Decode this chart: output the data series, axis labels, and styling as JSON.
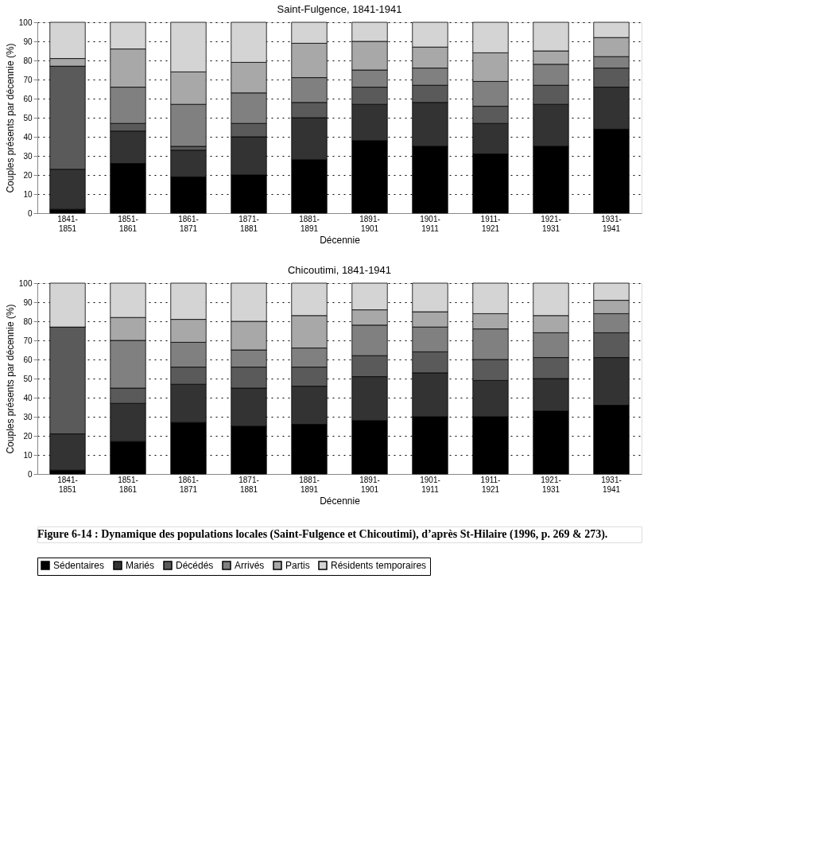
{
  "chart_data": [
    {
      "type": "bar",
      "stacked": true,
      "title": "Saint-Fulgence, 1841-1941",
      "xlabel": "Décennie",
      "ylabel": "Couples présents par décennie (%)",
      "categories": [
        "1841-1851",
        "1851-1861",
        "1861-1871",
        "1871-1881",
        "1881-1891",
        "1891-1901",
        "1901-1911",
        "1911-1921",
        "1921-1931",
        "1931-1941"
      ],
      "series": [
        {
          "name": "Sédentaires",
          "color": "#000000",
          "values": [
            2,
            26,
            19,
            20,
            28,
            38,
            35,
            31,
            35,
            44
          ]
        },
        {
          "name": "Mariés",
          "color": "#333333",
          "values": [
            21,
            17,
            14,
            20,
            22,
            19,
            23,
            16,
            22,
            22
          ]
        },
        {
          "name": "Décédés",
          "color": "#5a5a5a",
          "values": [
            54,
            4,
            2,
            7,
            8,
            9,
            9,
            9,
            10,
            10
          ]
        },
        {
          "name": "Arrivés",
          "color": "#808080",
          "values": [
            0,
            19,
            22,
            16,
            13,
            9,
            9,
            13,
            11,
            6
          ]
        },
        {
          "name": "Partis",
          "color": "#a8a8a8",
          "values": [
            4,
            20,
            17,
            16,
            18,
            15,
            11,
            15,
            7,
            10
          ]
        },
        {
          "name": "Résidents temporaires",
          "color": "#d4d4d4",
          "values": [
            19,
            14,
            26,
            21,
            11,
            10,
            13,
            16,
            15,
            8
          ]
        }
      ],
      "ylim": [
        0,
        100
      ],
      "yticks": [
        0,
        10,
        20,
        30,
        40,
        50,
        60,
        70,
        80,
        90,
        100
      ],
      "grid": "y",
      "legend": "bottom"
    },
    {
      "type": "bar",
      "stacked": true,
      "title": "Chicoutimi, 1841-1941",
      "xlabel": "Décennie",
      "ylabel": "Couples présents par décennie (%)",
      "categories": [
        "1841-1851",
        "1851-1861",
        "1861-1871",
        "1871-1881",
        "1881-1891",
        "1891-1901",
        "1901-1911",
        "1911-1921",
        "1921-1931",
        "1931-1941"
      ],
      "series": [
        {
          "name": "Sédentaires",
          "color": "#000000",
          "values": [
            2,
            17,
            27,
            25,
            26,
            28,
            30,
            30,
            33,
            36
          ]
        },
        {
          "name": "Mariés",
          "color": "#333333",
          "values": [
            19,
            20,
            20,
            20,
            20,
            23,
            23,
            19,
            17,
            25
          ]
        },
        {
          "name": "Décédés",
          "color": "#5a5a5a",
          "values": [
            56,
            8,
            9,
            11,
            10,
            11,
            11,
            11,
            11,
            13
          ]
        },
        {
          "name": "Arrivés",
          "color": "#808080",
          "values": [
            0,
            25,
            13,
            9,
            10,
            16,
            13,
            16,
            13,
            10
          ]
        },
        {
          "name": "Partis",
          "color": "#a8a8a8",
          "values": [
            0,
            12,
            12,
            15,
            17,
            8,
            8,
            8,
            9,
            7
          ]
        },
        {
          "name": "Résidents temporaires",
          "color": "#d4d4d4",
          "values": [
            23,
            18,
            19,
            20,
            17,
            14,
            15,
            16,
            17,
            9
          ]
        }
      ],
      "ylim": [
        0,
        100
      ],
      "yticks": [
        0,
        10,
        20,
        30,
        40,
        50,
        60,
        70,
        80,
        90,
        100
      ],
      "grid": "y",
      "legend": "bottom",
      "annotations": [
        "Figure 6-14 : Dynamique des populations locales (Saint-Fulgence et Chicoutimi), d’après St-Hilaire (1996, p. 269 & 273)."
      ]
    }
  ]
}
